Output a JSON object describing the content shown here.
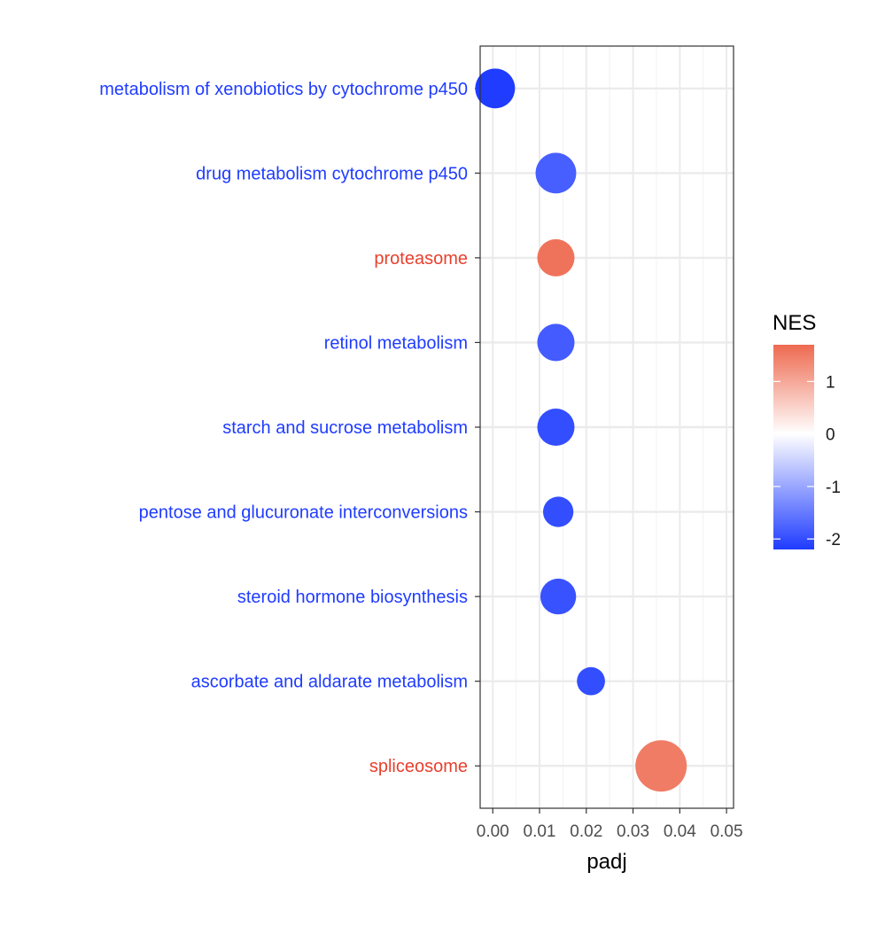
{
  "chart_data": {
    "type": "scatter",
    "xlabel": "padj",
    "xlim": [
      -0.0027,
      0.0515
    ],
    "x_ticks": [
      "0.00",
      "0.01",
      "0.02",
      "0.03",
      "0.04",
      "0.05"
    ],
    "x_tick_values": [
      0,
      0.01,
      0.02,
      0.03,
      0.04,
      0.05
    ],
    "grid": true,
    "legend": {
      "title": "NES",
      "position": "right",
      "ticks": [
        "1",
        "0",
        "-1",
        "-2"
      ],
      "tick_values": [
        1,
        0,
        -1,
        -2
      ],
      "range": [
        -2.2,
        1.7
      ],
      "colors": {
        "low": "#1f3cff",
        "mid": "#ffffff",
        "high": "#ee6a50"
      }
    },
    "points": [
      {
        "label": "metabolism of xenobiotics by cytochrome p450",
        "padj": 0.0005,
        "nes": -2.2,
        "size": 1.2,
        "label_color": "#1f3cff"
      },
      {
        "label": "drug metabolism cytochrome p450",
        "padj": 0.0135,
        "nes": -1.8,
        "size": 1.25,
        "label_color": "#1f3cff"
      },
      {
        "label": "proteasome",
        "padj": 0.0135,
        "nes": 1.6,
        "size": 1.05,
        "label_color": "#e8402e"
      },
      {
        "label": "retinol metabolism",
        "padj": 0.0135,
        "nes": -1.85,
        "size": 1.05,
        "label_color": "#1f3cff"
      },
      {
        "label": "starch and sucrose metabolism",
        "padj": 0.0135,
        "nes": -2.0,
        "size": 1.05,
        "label_color": "#1f3cff"
      },
      {
        "label": "pentose and glucuronate interconversions",
        "padj": 0.014,
        "nes": -2.0,
        "size": 0.7,
        "label_color": "#1f3cff"
      },
      {
        "label": "steroid hormone biosynthesis",
        "padj": 0.014,
        "nes": -1.95,
        "size": 0.97,
        "label_color": "#1f3cff"
      },
      {
        "label": "ascorbate and aldarate metabolism",
        "padj": 0.021,
        "nes": -2.0,
        "size": 0.6,
        "label_color": "#1f3cff"
      },
      {
        "label": "spliceosome",
        "padj": 0.036,
        "nes": 1.5,
        "size": 2.0,
        "label_color": "#e8402e"
      }
    ]
  }
}
